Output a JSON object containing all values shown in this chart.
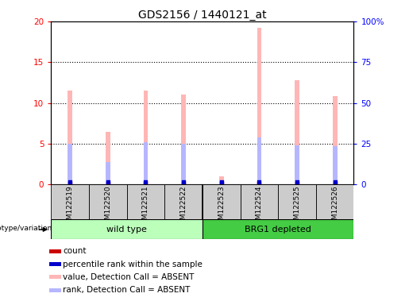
{
  "title": "GDS2156 / 1440121_at",
  "samples": [
    "GSM122519",
    "GSM122520",
    "GSM122521",
    "GSM122522",
    "GSM122523",
    "GSM122524",
    "GSM122525",
    "GSM122526"
  ],
  "pink_values": [
    11.5,
    6.5,
    11.5,
    11.0,
    1.0,
    19.2,
    12.8,
    10.8
  ],
  "blue_values": [
    5.0,
    2.8,
    5.2,
    5.0,
    0.5,
    5.8,
    4.8,
    4.7
  ],
  "ylim_left": [
    0,
    20
  ],
  "ylim_right": [
    0,
    100
  ],
  "yticks_left": [
    0,
    5,
    10,
    15,
    20
  ],
  "yticks_right": [
    0,
    25,
    50,
    75,
    100
  ],
  "ytick_labels_left": [
    "0",
    "5",
    "10",
    "15",
    "20"
  ],
  "ytick_labels_right": [
    "0",
    "25",
    "50",
    "75",
    "100%"
  ],
  "group1_label": "wild type",
  "group2_label": "BRG1 depleted",
  "genotype_label": "genotype/variation",
  "legend_items": [
    {
      "label": "count",
      "color": "#cc0000"
    },
    {
      "label": "percentile rank within the sample",
      "color": "#0000cc"
    },
    {
      "label": "value, Detection Call = ABSENT",
      "color": "#ffb6b6"
    },
    {
      "label": "rank, Detection Call = ABSENT",
      "color": "#b6b6ff"
    }
  ],
  "pink_color": "#ffb6b6",
  "blue_bar_color": "#b6b6ff",
  "red_dot_color": "#cc0000",
  "blue_dot_color": "#0000cc",
  "group1_color": "#bbffbb",
  "group2_color": "#44cc44",
  "bg_color": "#cccccc",
  "plot_bg": "#ffffff",
  "pink_bar_width": 0.12,
  "blue_bar_width": 0.12,
  "title_fontsize": 10,
  "tick_fontsize": 7.5,
  "label_fontsize": 7.5
}
